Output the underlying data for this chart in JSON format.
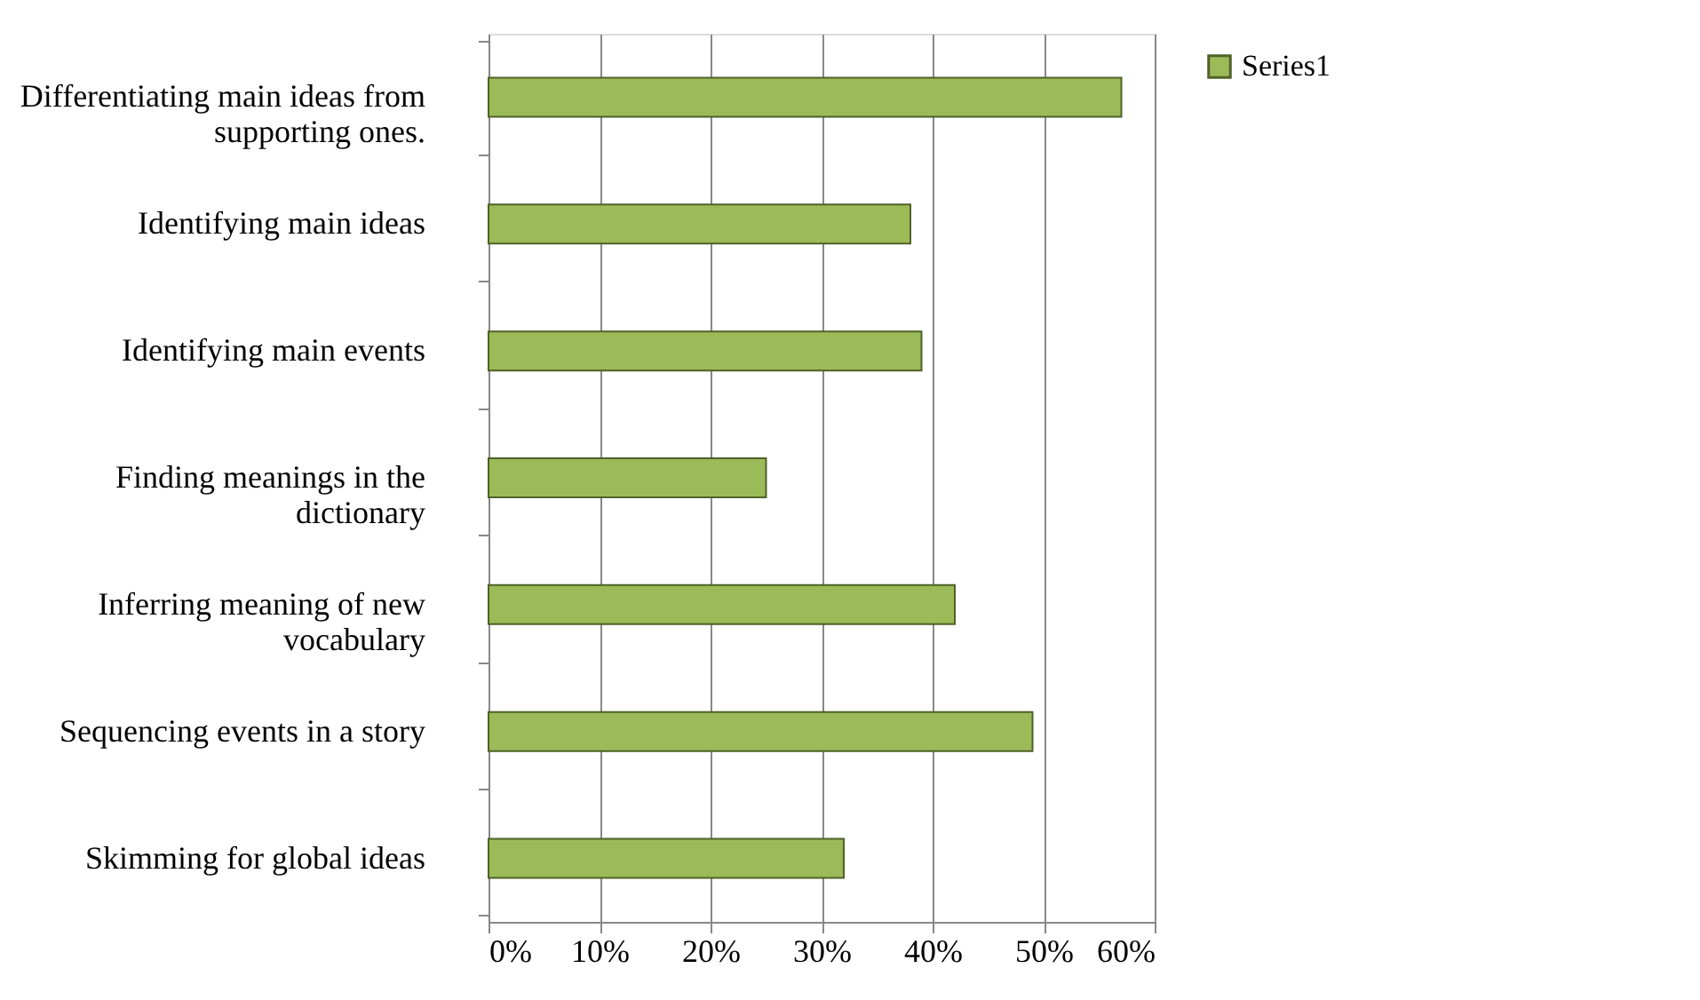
{
  "chart_data": {
    "type": "bar",
    "orientation": "horizontal",
    "categories": [
      "Differentiating main ideas from supporting ones.",
      "Identifying main ideas",
      "Identifying main events",
      "Finding meanings in the dictionary",
      "Inferring meaning of new vocabulary",
      "Sequencing events in a story",
      "Skimming for global ideas"
    ],
    "series": [
      {
        "name": "Series1",
        "color": "#9bbb59",
        "values": [
          57,
          38,
          39,
          25,
          42,
          49,
          32
        ]
      }
    ],
    "xlim": [
      0,
      60
    ],
    "xticks": [
      {
        "value": 0,
        "label": "0%"
      },
      {
        "value": 10,
        "label": "10%"
      },
      {
        "value": 20,
        "label": "20%"
      },
      {
        "value": 30,
        "label": "30%"
      },
      {
        "value": 40,
        "label": "40%"
      },
      {
        "value": 50,
        "label": "50%"
      },
      {
        "value": 60,
        "label": "60%"
      }
    ],
    "grid": "x",
    "legend": "right"
  }
}
